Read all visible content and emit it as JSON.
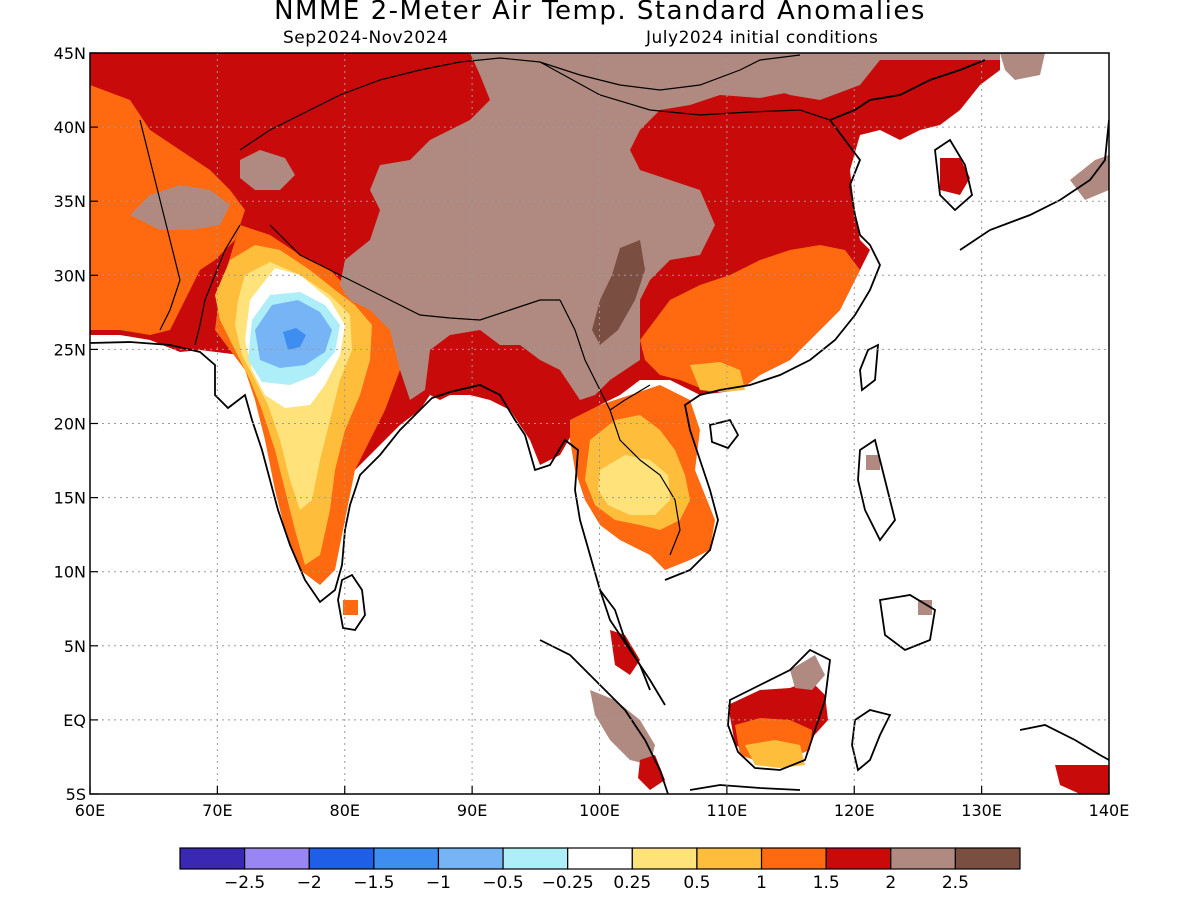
{
  "header": {
    "title": "NMME 2-Meter Air Temp. Standard Anomalies",
    "period": "Sep2024-Nov2024",
    "initial_conditions": "July2024 initial conditions"
  },
  "map": {
    "lon_range": [
      60,
      140
    ],
    "lat_range": [
      -5,
      45
    ],
    "x_ticks": [
      "60E",
      "70E",
      "80E",
      "90E",
      "100E",
      "110E",
      "120E",
      "130E",
      "140E"
    ],
    "y_ticks": [
      "45N",
      "40N",
      "35N",
      "30N",
      "25N",
      "20N",
      "15N",
      "10N",
      "5N",
      "EQ",
      "5S"
    ],
    "grid": "dotted"
  },
  "colorbar": {
    "colors": [
      "#3a28b4",
      "#9a86f2",
      "#1f5fe8",
      "#3d8ef0",
      "#76b4f6",
      "#aeeef8",
      "#ffffff",
      "#ffe27a",
      "#ffbd3c",
      "#ff6a10",
      "#c80a0a",
      "#b08a80",
      "#7a4e40"
    ],
    "labels": [
      "-2.5",
      "-2",
      "-1.5",
      "-1",
      "-0.5",
      "-0.25",
      "0.25",
      "0.5",
      "1",
      "1.5",
      "2",
      "2.5"
    ]
  }
}
